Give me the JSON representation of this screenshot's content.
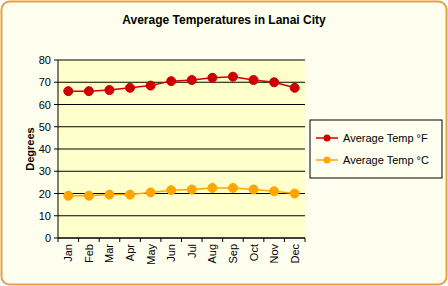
{
  "chart_data": {
    "type": "line",
    "title": "Average Temperatures in Lanai City",
    "y_label": "Degrees",
    "categories": [
      "Jan",
      "Feb",
      "Mar",
      "Apr",
      "May",
      "Jun",
      "Jul",
      "Aug",
      "Sep",
      "Oct",
      "Nov",
      "Dec"
    ],
    "series": [
      {
        "name": "Average Temp °F",
        "color": "#cc0000",
        "marker": "circle",
        "values": [
          66,
          66,
          66.5,
          67.5,
          68.5,
          70.5,
          71,
          72,
          72.5,
          71,
          70,
          67.5
        ]
      },
      {
        "name": "Average Temp °C",
        "color": "#ffa500",
        "marker": "circle",
        "values": [
          19,
          19,
          19.5,
          19.5,
          20.5,
          21.5,
          21.8,
          22.5,
          22.5,
          21.8,
          21,
          20
        ]
      }
    ],
    "ylim": [
      0,
      80
    ],
    "yticks": [
      0,
      10,
      20,
      30,
      40,
      50,
      60,
      70,
      80
    ],
    "grid": true,
    "legend": "right"
  }
}
